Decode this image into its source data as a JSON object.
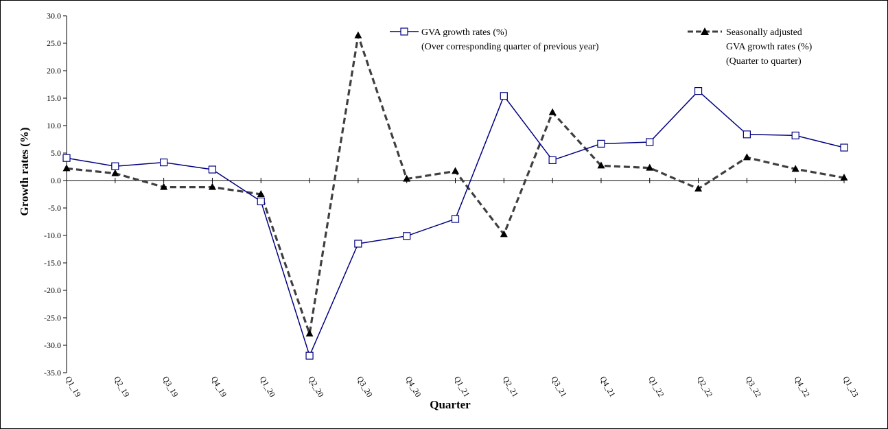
{
  "chart_data": {
    "type": "line",
    "title": "",
    "xlabel": "Quarter",
    "ylabel": "Growth rates (%)",
    "ylim": [
      -35.0,
      30.0
    ],
    "y_ticks": [
      "30.0",
      "25.0",
      "20.0",
      "15.0",
      "10.0",
      "5.0",
      "0.0",
      "-5.0",
      "-10.0",
      "-15.0",
      "-20.0",
      "-25.0",
      "-30.0",
      "-35.0"
    ],
    "categories": [
      "Q1_19",
      "Q2_19",
      "Q3_19",
      "Q4_19",
      "Q1_20",
      "Q2_20",
      "Q3_20",
      "Q4_20",
      "Q1_21",
      "Q2_21",
      "Q3_21",
      "Q4_21",
      "Q1_22",
      "Q2_22",
      "Q3_22",
      "Q4_22",
      "Q1_23"
    ],
    "grid": false,
    "legend_position": "top-right",
    "series": [
      {
        "name": "GVA growth rates (%)",
        "name_line2": "(Over corresponding quarter of previous year)",
        "color": "#000080",
        "marker": "open-square",
        "values": [
          4.1,
          2.6,
          3.3,
          2.0,
          -3.8,
          -31.9,
          -11.5,
          -10.1,
          -7.0,
          15.4,
          3.7,
          6.7,
          7.0,
          16.3,
          8.4,
          8.2,
          6.0
        ]
      },
      {
        "name": "Seasonally adjusted",
        "name_line2": "GVA growth rates (%)",
        "name_line3": "(Quarter to quarter)",
        "color": "#3f3f3f",
        "marker": "filled-triangle",
        "values": [
          2.2,
          1.3,
          -1.2,
          -1.2,
          -2.5,
          -27.9,
          26.4,
          0.3,
          1.7,
          -9.8,
          12.4,
          2.7,
          2.3,
          -1.5,
          4.2,
          2.1,
          0.5
        ]
      }
    ]
  }
}
